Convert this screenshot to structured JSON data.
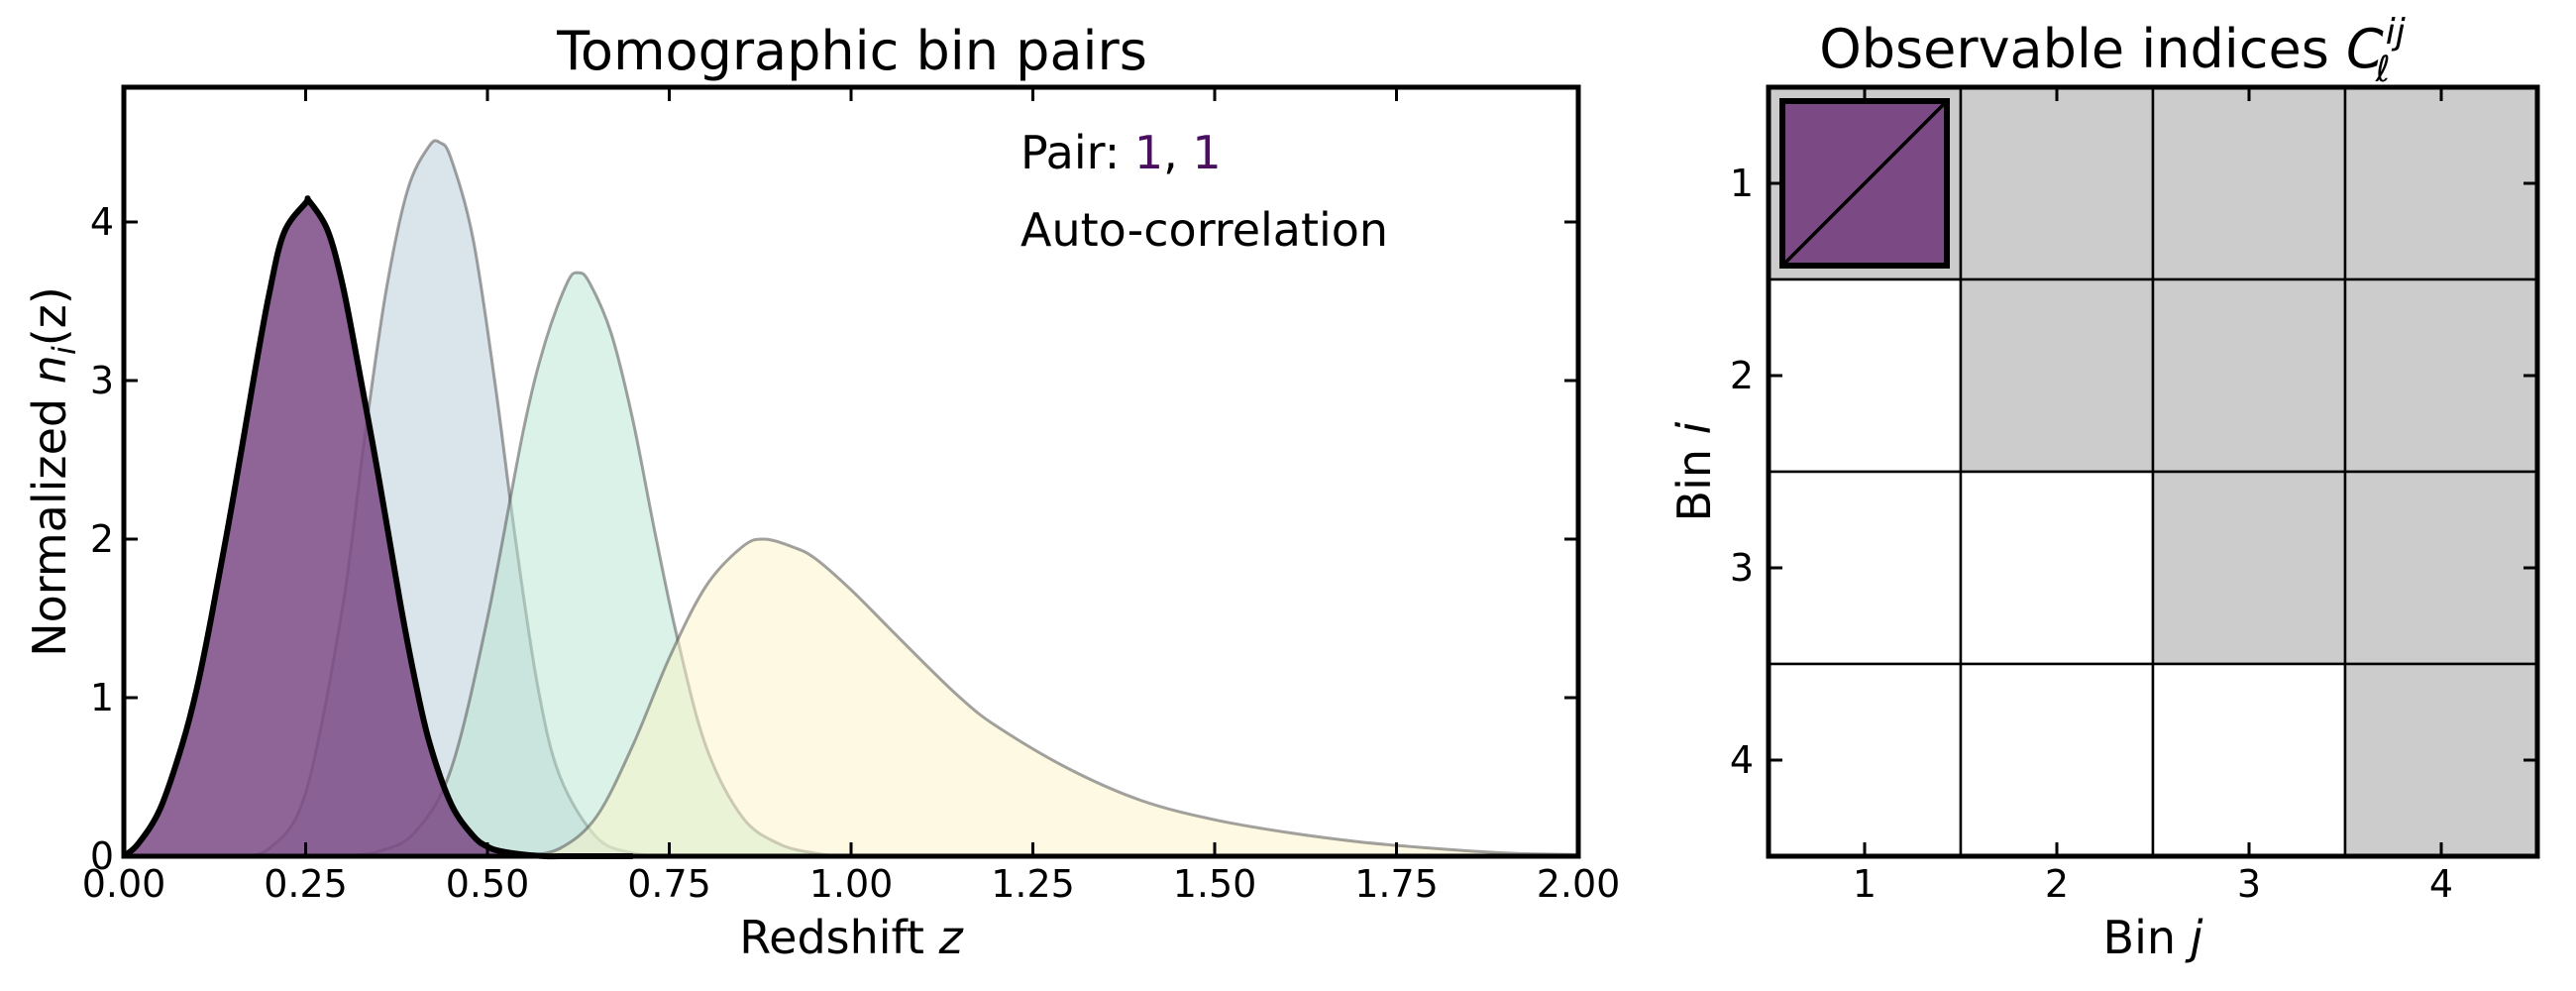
{
  "chart_data": [
    {
      "type": "area",
      "title": "Tomographic bin pairs",
      "xlabel": "Redshift z",
      "xlabel_main": "Redshift ",
      "xlabel_var": "z",
      "ylabel": "Normalized n_i(z)",
      "ylabel_main": "Normalized ",
      "ylabel_var": "n",
      "ylabel_sub": "i",
      "ylabel_arg": "(z)",
      "xlim": [
        0,
        2
      ],
      "ylim": [
        0,
        4.85
      ],
      "xticks": [
        "0.00",
        "0.25",
        "0.50",
        "0.75",
        "1.00",
        "1.25",
        "1.50",
        "1.75",
        "2.00"
      ],
      "yticks": [
        "0",
        "1",
        "2",
        "3",
        "4"
      ],
      "series": [
        {
          "bin": 1,
          "color": "#7b4a85",
          "highlighted": true,
          "peak_z": 0.255,
          "peak_value": 4.13,
          "x": [
            0.0,
            0.02,
            0.05,
            0.08,
            0.1,
            0.12,
            0.15,
            0.18,
            0.2,
            0.22,
            0.25,
            0.255,
            0.28,
            0.3,
            0.32,
            0.35,
            0.38,
            0.4,
            0.42,
            0.45,
            0.48,
            0.5,
            0.52,
            0.55,
            0.58,
            0.6,
            0.65,
            0.7
          ],
          "values": [
            0.0,
            0.08,
            0.3,
            0.7,
            1.05,
            1.5,
            2.25,
            3.05,
            3.55,
            3.93,
            4.12,
            4.13,
            3.95,
            3.62,
            3.15,
            2.4,
            1.6,
            1.12,
            0.72,
            0.33,
            0.13,
            0.06,
            0.03,
            0.01,
            0.0,
            0.0,
            0.0,
            0.0
          ]
        },
        {
          "bin": 2,
          "color": "#b6c9d8",
          "highlighted": false,
          "peak_z": 0.435,
          "peak_value": 4.5,
          "x": [
            0.15,
            0.2,
            0.25,
            0.3,
            0.33,
            0.36,
            0.39,
            0.42,
            0.435,
            0.45,
            0.48,
            0.51,
            0.54,
            0.57,
            0.6,
            0.65,
            0.7,
            0.75,
            0.8
          ],
          "values": [
            0.0,
            0.05,
            0.4,
            1.55,
            2.6,
            3.55,
            4.2,
            4.48,
            4.5,
            4.4,
            3.9,
            3.0,
            1.95,
            1.05,
            0.5,
            0.12,
            0.02,
            0.0,
            0.0
          ]
        },
        {
          "bin": 3,
          "color": "#b7e5d2",
          "highlighted": false,
          "peak_z": 0.625,
          "peak_value": 3.68,
          "x": [
            0.3,
            0.35,
            0.4,
            0.45,
            0.5,
            0.55,
            0.58,
            0.61,
            0.625,
            0.64,
            0.67,
            0.7,
            0.73,
            0.76,
            0.8,
            0.85,
            0.9,
            0.95,
            1.0,
            1.1
          ],
          "values": [
            0.0,
            0.03,
            0.15,
            0.55,
            1.5,
            2.7,
            3.25,
            3.62,
            3.68,
            3.62,
            3.3,
            2.75,
            2.05,
            1.4,
            0.7,
            0.25,
            0.08,
            0.02,
            0.0,
            0.0
          ]
        },
        {
          "bin": 4,
          "color": "#fbf4c6",
          "highlighted": false,
          "peak_z": 0.88,
          "peak_value": 2.0,
          "x": [
            0.55,
            0.6,
            0.65,
            0.7,
            0.75,
            0.8,
            0.85,
            0.88,
            0.92,
            0.95,
            1.0,
            1.05,
            1.1,
            1.15,
            1.2,
            1.3,
            1.4,
            1.5,
            1.6,
            1.7,
            1.8,
            1.9,
            2.0
          ],
          "values": [
            0.0,
            0.05,
            0.25,
            0.7,
            1.25,
            1.7,
            1.95,
            2.0,
            1.95,
            1.88,
            1.68,
            1.45,
            1.22,
            1.0,
            0.82,
            0.55,
            0.35,
            0.23,
            0.15,
            0.09,
            0.05,
            0.02,
            0.01
          ]
        }
      ],
      "annotations": {
        "pair_prefix": "Pair: ",
        "pair_i": "1",
        "pair_sep": ", ",
        "pair_j": "1",
        "kind": "Auto-correlation",
        "accent_color": "#4a0f5e"
      }
    },
    {
      "type": "heatmap",
      "title": "Observable indices C_ℓ^ij",
      "title_main": "Observable indices ",
      "title_sym": "C",
      "title_sup": "ij",
      "title_sub": "ℓ",
      "xlabel": "Bin j",
      "xlabel_main": "Bin ",
      "xlabel_var": "j",
      "ylabel": "Bin i",
      "ylabel_main": "Bin ",
      "ylabel_var": "i",
      "xticks": [
        "1",
        "2",
        "3",
        "4"
      ],
      "yticks": [
        "1",
        "2",
        "3",
        "4"
      ],
      "cells": [
        [
          1,
          1,
          1,
          1
        ],
        [
          0,
          1,
          1,
          1
        ],
        [
          0,
          0,
          1,
          1
        ],
        [
          0,
          0,
          0,
          1
        ]
      ],
      "fill_color": "#cccccc",
      "empty_color": "#ffffff",
      "selected": {
        "i": 1,
        "j": 1,
        "color": "#7b4a85"
      }
    }
  ]
}
